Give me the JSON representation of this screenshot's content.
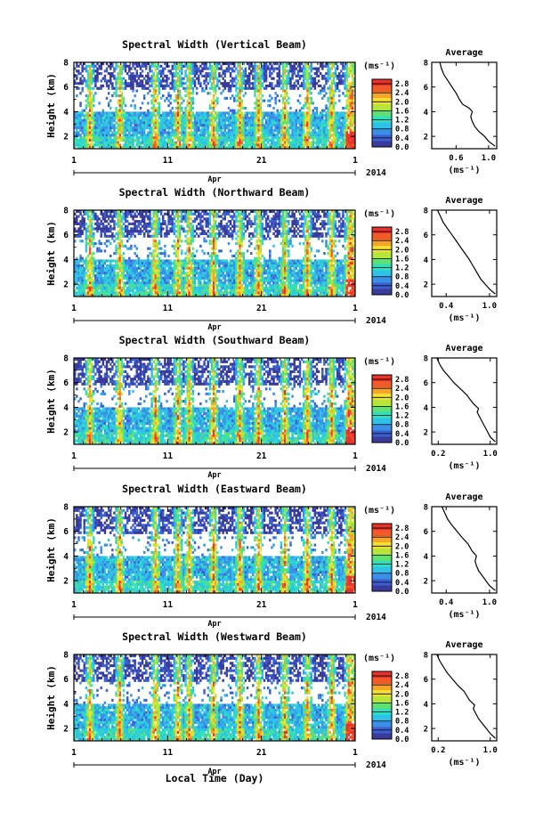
{
  "chart_data": [
    {
      "type": "heatmap",
      "title": "Spectral Width (Vertical Beam)",
      "ylabel": "Height (km)",
      "ylim": [
        1,
        8
      ],
      "yticks": [
        "2",
        "4",
        "6",
        "8"
      ],
      "x_ticks": [
        "1",
        "11",
        "21",
        "1"
      ],
      "month_label": "Apr",
      "year_label": "2014",
      "colorbar": {
        "unit": "(ms⁻¹)",
        "ticks": [
          "0.0",
          "0.4",
          "0.8",
          "1.2",
          "1.6",
          "2.0",
          "2.4",
          "2.8"
        ],
        "range": [
          0,
          3.0
        ]
      },
      "average": {
        "title": "Average",
        "xlabel": "(ms⁻¹)",
        "xticks": [
          "0.6",
          "1.0"
        ],
        "xlim": [
          0.3,
          1.1
        ],
        "ylim": [
          1,
          8
        ],
        "profile": [
          [
            1.08,
            1.2
          ],
          [
            1.0,
            1.6
          ],
          [
            0.95,
            2.0
          ],
          [
            0.88,
            2.4
          ],
          [
            0.83,
            2.8
          ],
          [
            0.8,
            3.2
          ],
          [
            0.78,
            3.6
          ],
          [
            0.8,
            4.0
          ],
          [
            0.76,
            4.3
          ],
          [
            0.68,
            4.6
          ],
          [
            0.64,
            5.0
          ],
          [
            0.6,
            5.5
          ],
          [
            0.55,
            6.0
          ],
          [
            0.5,
            6.5
          ],
          [
            0.45,
            7.0
          ],
          [
            0.42,
            7.5
          ],
          [
            0.4,
            8.0
          ]
        ]
      }
    },
    {
      "type": "heatmap",
      "title": "Spectral Width (Northward Beam)",
      "ylabel": "Height (km)",
      "ylim": [
        1,
        8
      ],
      "yticks": [
        "2",
        "4",
        "6",
        "8"
      ],
      "x_ticks": [
        "1",
        "11",
        "21",
        "1"
      ],
      "month_label": "Apr",
      "year_label": "2014",
      "colorbar": {
        "unit": "(ms⁻¹)",
        "ticks": [
          "0.0",
          "0.4",
          "0.8",
          "1.2",
          "1.6",
          "2.0",
          "2.4",
          "2.8"
        ],
        "range": [
          0,
          3.0
        ]
      },
      "average": {
        "title": "Average",
        "xlabel": "(ms⁻¹)",
        "xticks": [
          "0.4",
          "1.0"
        ],
        "xlim": [
          0.2,
          1.1
        ],
        "ylim": [
          1,
          8
        ],
        "profile": [
          [
            1.08,
            1.2
          ],
          [
            1.0,
            1.6
          ],
          [
            0.94,
            2.0
          ],
          [
            0.88,
            2.4
          ],
          [
            0.84,
            2.8
          ],
          [
            0.8,
            3.2
          ],
          [
            0.76,
            3.6
          ],
          [
            0.72,
            4.0
          ],
          [
            0.66,
            4.5
          ],
          [
            0.6,
            5.0
          ],
          [
            0.54,
            5.5
          ],
          [
            0.48,
            6.0
          ],
          [
            0.42,
            6.5
          ],
          [
            0.36,
            7.0
          ],
          [
            0.32,
            7.5
          ],
          [
            0.28,
            8.0
          ]
        ]
      }
    },
    {
      "type": "heatmap",
      "title": "Spectral Width (Southward Beam)",
      "ylabel": "Height (km)",
      "ylim": [
        1,
        8
      ],
      "yticks": [
        "2",
        "4",
        "6",
        "8"
      ],
      "x_ticks": [
        "1",
        "11",
        "21",
        "1"
      ],
      "month_label": "Apr",
      "year_label": "2014",
      "colorbar": {
        "unit": "(ms⁻¹)",
        "ticks": [
          "0.0",
          "0.4",
          "0.8",
          "1.2",
          "1.6",
          "2.0",
          "2.4",
          "2.8"
        ],
        "range": [
          0,
          3.0
        ]
      },
      "average": {
        "title": "Average",
        "xlabel": "(ms⁻¹)",
        "xticks": [
          "0.2",
          "1.0"
        ],
        "xlim": [
          0.1,
          1.1
        ],
        "ylim": [
          1,
          8
        ],
        "profile": [
          [
            1.08,
            1.2
          ],
          [
            1.0,
            1.6
          ],
          [
            0.96,
            2.0
          ],
          [
            0.92,
            2.4
          ],
          [
            0.88,
            2.8
          ],
          [
            0.84,
            3.2
          ],
          [
            0.8,
            3.6
          ],
          [
            0.82,
            3.9
          ],
          [
            0.74,
            4.3
          ],
          [
            0.64,
            5.0
          ],
          [
            0.54,
            5.5
          ],
          [
            0.44,
            6.0
          ],
          [
            0.36,
            6.5
          ],
          [
            0.28,
            7.0
          ],
          [
            0.22,
            7.5
          ],
          [
            0.18,
            8.0
          ]
        ]
      }
    },
    {
      "type": "heatmap",
      "title": "Spectral Width (Eastward Beam)",
      "ylabel": "Height (km)",
      "ylim": [
        1,
        8
      ],
      "yticks": [
        "2",
        "4",
        "6",
        "8"
      ],
      "x_ticks": [
        "1",
        "11",
        "21",
        "1"
      ],
      "month_label": "Apr",
      "year_label": "2014",
      "colorbar": {
        "unit": "(ms⁻¹)",
        "ticks": [
          "0.0",
          "0.4",
          "0.8",
          "1.2",
          "1.6",
          "2.0",
          "2.4",
          "2.8"
        ],
        "range": [
          0,
          3.0
        ]
      },
      "average": {
        "title": "Average",
        "xlabel": "(ms⁻¹)",
        "xticks": [
          "0.4",
          "1.0"
        ],
        "xlim": [
          0.2,
          1.1
        ],
        "ylim": [
          1,
          8
        ],
        "profile": [
          [
            1.08,
            1.2
          ],
          [
            1.0,
            1.6
          ],
          [
            0.95,
            2.0
          ],
          [
            0.9,
            2.4
          ],
          [
            0.85,
            2.8
          ],
          [
            0.82,
            3.2
          ],
          [
            0.8,
            3.6
          ],
          [
            0.82,
            4.0
          ],
          [
            0.76,
            4.4
          ],
          [
            0.7,
            5.0
          ],
          [
            0.62,
            5.5
          ],
          [
            0.55,
            6.0
          ],
          [
            0.48,
            6.5
          ],
          [
            0.42,
            7.0
          ],
          [
            0.38,
            7.5
          ],
          [
            0.34,
            8.0
          ]
        ]
      }
    },
    {
      "type": "heatmap",
      "title": "Spectral Width (Westward Beam)",
      "ylabel": "Height (km)",
      "ylim": [
        1,
        8
      ],
      "yticks": [
        "2",
        "4",
        "6",
        "8"
      ],
      "x_ticks": [
        "1",
        "11",
        "21",
        "1"
      ],
      "month_label": "Apr",
      "year_label": "2014",
      "colorbar": {
        "unit": "(ms⁻¹)",
        "ticks": [
          "0.0",
          "0.4",
          "0.8",
          "1.2",
          "1.6",
          "2.0",
          "2.4",
          "2.8"
        ],
        "range": [
          0,
          3.0
        ]
      },
      "average": {
        "title": "Average",
        "xlabel": "(ms⁻¹)",
        "xticks": [
          "0.2",
          "1.0"
        ],
        "xlim": [
          0.1,
          1.1
        ],
        "ylim": [
          1,
          8
        ],
        "profile": [
          [
            1.08,
            1.2
          ],
          [
            1.0,
            1.6
          ],
          [
            0.94,
            2.0
          ],
          [
            0.88,
            2.4
          ],
          [
            0.82,
            2.8
          ],
          [
            0.78,
            3.2
          ],
          [
            0.74,
            3.6
          ],
          [
            0.76,
            3.9
          ],
          [
            0.68,
            4.3
          ],
          [
            0.6,
            5.0
          ],
          [
            0.5,
            5.5
          ],
          [
            0.42,
            6.0
          ],
          [
            0.34,
            6.5
          ],
          [
            0.28,
            7.0
          ],
          [
            0.22,
            7.5
          ],
          [
            0.18,
            8.0
          ]
        ]
      }
    }
  ],
  "figure": {
    "xlabel": "Local Time (Day)",
    "colormap": [
      "#3a3a9a",
      "#3b5fcf",
      "#3a8fe6",
      "#2fc2e8",
      "#2fe0c0",
      "#5fe070",
      "#b8e53a",
      "#f2e032",
      "#f7a528",
      "#f25a2a",
      "#e8332c"
    ]
  }
}
